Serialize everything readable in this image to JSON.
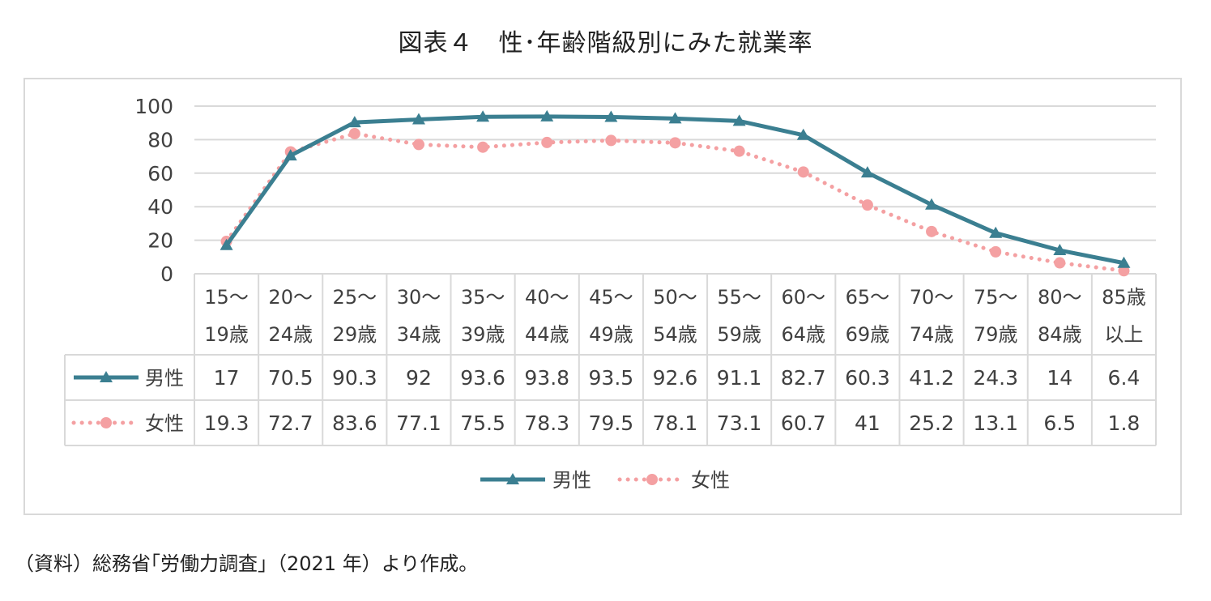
{
  "title": "図表４　性･年齢階級別にみた就業率",
  "source": "（資料）総務省｢労働力調査｣（2021 年）より作成。",
  "colors": {
    "male": "#3b7f91",
    "female": "#f4a0a2",
    "grid": "#d9d9d9",
    "text": "#404040"
  },
  "chart_data": {
    "type": "line",
    "title": "図表４　性･年齢階級別にみた就業率",
    "categories": [
      [
        "15～",
        "19歳"
      ],
      [
        "20～",
        "24歳"
      ],
      [
        "25～",
        "29歳"
      ],
      [
        "30～",
        "34歳"
      ],
      [
        "35～",
        "39歳"
      ],
      [
        "40～",
        "44歳"
      ],
      [
        "45～",
        "49歳"
      ],
      [
        "50～",
        "54歳"
      ],
      [
        "55～",
        "59歳"
      ],
      [
        "60～",
        "64歳"
      ],
      [
        "65～",
        "69歳"
      ],
      [
        "70～",
        "74歳"
      ],
      [
        "75～",
        "79歳"
      ],
      [
        "80～",
        "84歳"
      ],
      [
        "85歳",
        "以上"
      ]
    ],
    "series": [
      {
        "name": "男性",
        "marker": "triangle",
        "line": "solid",
        "values": [
          17,
          70.5,
          90.3,
          92,
          93.6,
          93.8,
          93.5,
          92.6,
          91.1,
          82.7,
          60.3,
          41.2,
          24.3,
          14,
          6.4
        ]
      },
      {
        "name": "女性",
        "marker": "circle",
        "line": "dotted",
        "values": [
          19.3,
          72.7,
          83.6,
          77.1,
          75.5,
          78.3,
          79.5,
          78.1,
          73.1,
          60.7,
          41,
          25.2,
          13.1,
          6.5,
          1.8
        ]
      }
    ],
    "ylim": [
      0,
      100
    ],
    "yticks": [
      0,
      20,
      40,
      60,
      80,
      100
    ],
    "xlabel": "",
    "ylabel": "",
    "grid": true,
    "legend": "bottom",
    "data_table": true
  }
}
